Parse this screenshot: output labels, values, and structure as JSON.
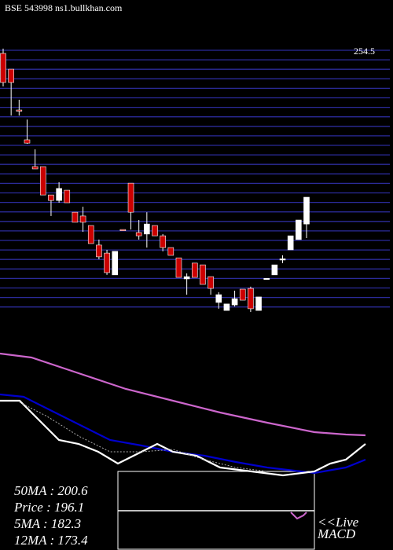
{
  "chart_data": {
    "type": "candlestick",
    "title": "BSE 543998 ns1.bullkhan.com",
    "ylim": [
      150,
      256
    ],
    "yticks": [
      254.5
    ],
    "open": [
      253.5,
      247.2,
      230.9,
      219.0,
      208.3,
      208.3,
      197.0,
      194.8,
      198.9,
      190.1,
      188.6,
      184.8,
      177.0,
      173.8,
      165.1,
      183.2,
      201.7,
      182.0,
      181.4,
      184.8,
      180.7,
      176.0,
      171.9,
      163.5,
      169.8,
      169.1,
      164.4,
      154.1,
      150.9,
      153.1,
      159.4,
      159.7,
      150.9,
      163.5,
      165.1,
      171.3,
      175.1,
      179.2,
      185.4
    ],
    "high": [
      255.4,
      247.2,
      235.0,
      227.1,
      215.2,
      208.3,
      197.0,
      202.1,
      198.9,
      190.1,
      192.3,
      184.8,
      179.2,
      175.1,
      174.5,
      183.2,
      201.7,
      187.0,
      190.1,
      184.8,
      181.4,
      176.0,
      171.9,
      165.7,
      169.8,
      169.1,
      164.4,
      158.2,
      153.5,
      158.8,
      159.4,
      160.4,
      156.3,
      163.5,
      169.1,
      172.9,
      180.7,
      187.0,
      196.1
    ],
    "low": [
      240.3,
      228.7,
      228.7,
      217.4,
      207.4,
      197.0,
      188.6,
      193.9,
      193.9,
      186.1,
      182.3,
      177.6,
      171.3,
      165.1,
      165.1,
      183.2,
      183.2,
      179.2,
      176.0,
      180.7,
      174.5,
      172.9,
      164.1,
      157.2,
      164.1,
      161.3,
      157.2,
      151.6,
      150.9,
      152.5,
      155.0,
      150.3,
      150.9,
      163.5,
      165.1,
      169.8,
      175.1,
      179.2,
      179.8
    ],
    "close": [
      241.9,
      241.9,
      230.6,
      217.7,
      207.4,
      197.0,
      194.8,
      199.6,
      193.9,
      186.1,
      186.1,
      177.6,
      172.3,
      166.0,
      174.5,
      183.0,
      190.1,
      180.7,
      185.4,
      180.7,
      176.0,
      172.9,
      164.1,
      164.4,
      164.1,
      161.3,
      159.7,
      157.2,
      153.5,
      155.6,
      155.0,
      151.6,
      156.3,
      163.7,
      169.1,
      171.5,
      180.7,
      187.0,
      196.1
    ],
    "up_color": "#ffffff",
    "down_color": "#cc0000",
    "lower_panel": {
      "xlim": [
        0,
        500
      ],
      "ylim": [
        0,
        180
      ],
      "series": [
        {
          "color": "#cc66cc",
          "x": [
            0,
            40,
            100,
            160,
            220,
            280,
            340,
            400,
            440,
            465
          ],
          "values": [
            170,
            165,
            145,
            125,
            110,
            95,
            82,
            70,
            67,
            66
          ]
        },
        {
          "color": "#0000cc",
          "x": [
            0,
            30,
            60,
            100,
            140,
            180,
            220,
            260,
            300,
            340,
            400,
            440,
            465
          ],
          "values": [
            118,
            115,
            100,
            80,
            60,
            53,
            45,
            40,
            32,
            25,
            18,
            25,
            35
          ]
        },
        {
          "color": "#ffffff",
          "x": [
            0,
            25,
            50,
            75,
            100,
            125,
            150,
            170,
            200,
            220,
            250,
            280,
            320,
            360,
            400,
            420,
            440,
            465
          ],
          "values": [
            110,
            110,
            85,
            60,
            55,
            45,
            30,
            40,
            55,
            45,
            40,
            25,
            20,
            15,
            20,
            30,
            35,
            55
          ]
        },
        {
          "color": "#aaaaaa",
          "x": [
            25,
            60,
            100,
            140,
            180,
            220,
            260,
            300,
            340
          ],
          "values": [
            108,
            90,
            65,
            45,
            45,
            48,
            35,
            25,
            20
          ]
        }
      ]
    },
    "info_labels": [
      "50MA : 200.6",
      "Price  : 196.1",
      "5MA  : 182.3",
      "12MA : 173.4"
    ],
    "macd_label": [
      "<<Live",
      "MACD"
    ]
  }
}
